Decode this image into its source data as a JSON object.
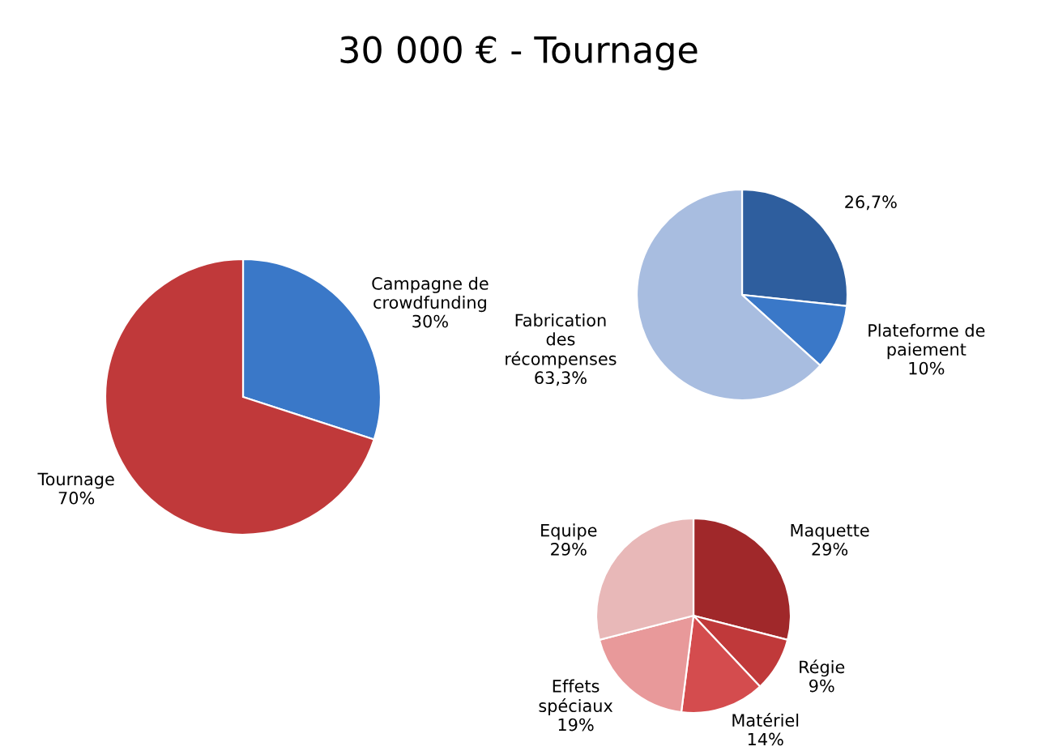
{
  "chart_data": [
    {
      "type": "pie",
      "title": "30 000 € - Tournage",
      "categories": [
        "Campagne de\ncrowdfunding",
        "Tournage"
      ],
      "values": [
        30,
        70
      ],
      "colors": [
        "#3a78c8",
        "#c0393a"
      ],
      "value_labels": [
        "30%",
        "70%"
      ]
    },
    {
      "type": "pie",
      "categories": [
        null,
        "Plateforme de\npaiement",
        "Fabrication\ndes\nrécompenses"
      ],
      "values": [
        26.7,
        10,
        63.3
      ],
      "colors": [
        "#2e5e9e",
        "#3a78c8",
        "#a8bde0"
      ],
      "value_labels": [
        "26,7%",
        "10%",
        "63,3%"
      ]
    },
    {
      "type": "pie",
      "categories": [
        "Maquette",
        "Régie",
        "Matériel",
        "Effets\nspéciaux",
        "Equipe"
      ],
      "values": [
        29,
        9,
        14,
        19,
        29
      ],
      "colors": [
        "#a0282a",
        "#c0393a",
        "#d44c4e",
        "#e8999a",
        "#e8b8b8"
      ],
      "value_labels": [
        "29%",
        "9%",
        "14%",
        "19%",
        "29%"
      ]
    }
  ]
}
